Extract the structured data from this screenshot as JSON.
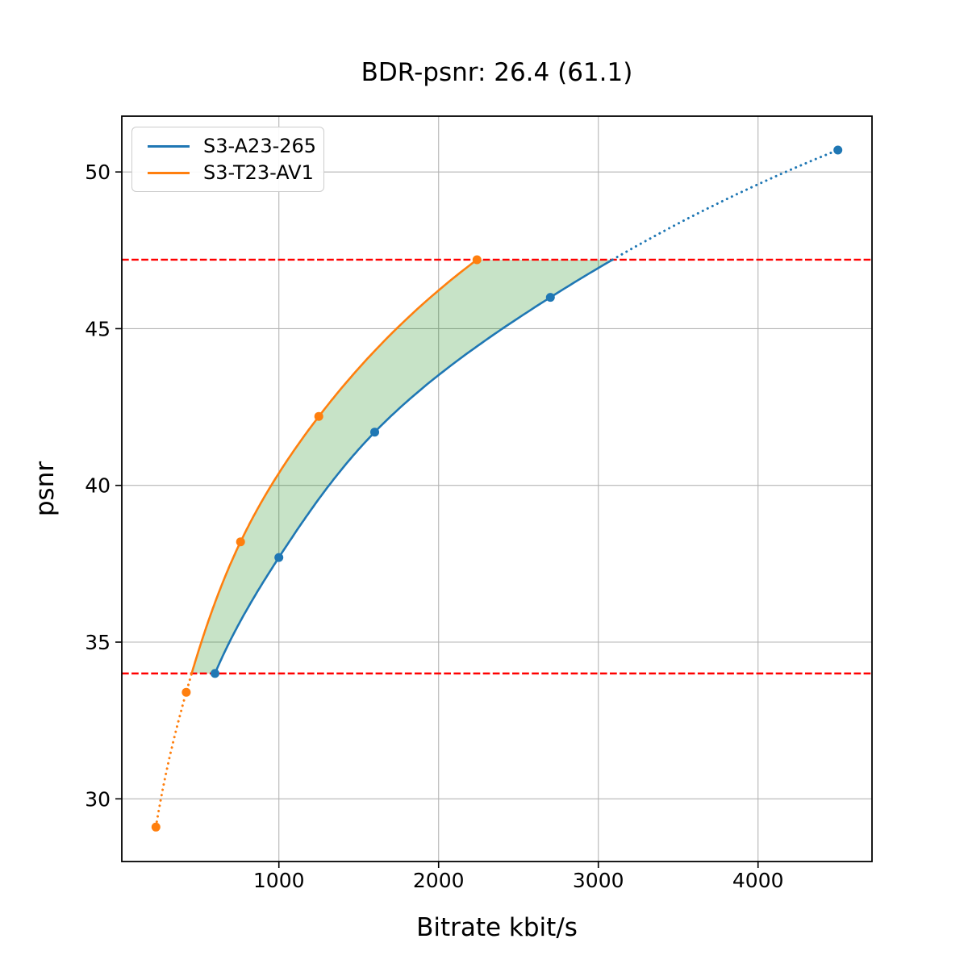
{
  "title": "BDR-psnr: 26.4 (61.1)",
  "chart_data": {
    "type": "line",
    "title": "BDR-psnr: 26.4 (61.1)",
    "xlabel": "Bitrate kbit/s",
    "ylabel": "psnr",
    "xlim": [
      16.5,
      4713.5
    ],
    "ylim": [
      28.0,
      51.78
    ],
    "x_ticks": [
      1000,
      2000,
      3000,
      4000
    ],
    "y_ticks": [
      30,
      35,
      40,
      45,
      50
    ],
    "grid": true,
    "grid_color": "#b4b4b4",
    "legend_position": "upper left",
    "series": [
      {
        "name": "S3-A23-265",
        "color": "#1f77b4",
        "x": [
          600,
          1000,
          1600,
          2700,
          4500
        ],
        "y": [
          34.0,
          37.7,
          41.7,
          46.0,
          50.7
        ]
      },
      {
        "name": "S3-T23-AV1",
        "color": "#ff7f0e",
        "x": [
          230,
          420,
          760,
          1250,
          2240
        ],
        "y": [
          29.1,
          33.4,
          38.2,
          42.2,
          47.2
        ]
      }
    ],
    "overlap_range_psnr": [
      34.0,
      47.2
    ],
    "hlines": [
      {
        "y": 34.0,
        "color": "#ff0000",
        "style": "dashed"
      },
      {
        "y": 47.2,
        "color": "#ff0000",
        "style": "dashed"
      }
    ],
    "shaded_region": {
      "between": [
        "S3-T23-AV1",
        "S3-A23-265"
      ],
      "y_range": [
        34.0,
        47.2
      ],
      "color": "#008000",
      "alpha": 0.22
    },
    "interpolation": "pchip-on-log-bitrate",
    "marker": "circle"
  },
  "colors": {
    "blue_series": "#1f77b4",
    "orange_series": "#ff7f0e",
    "bd_bound_line": "#ff0000",
    "shade_fill": "rgba(0,128,0,0.22)",
    "grid": "#b4b4b4",
    "spine": "#000000"
  }
}
